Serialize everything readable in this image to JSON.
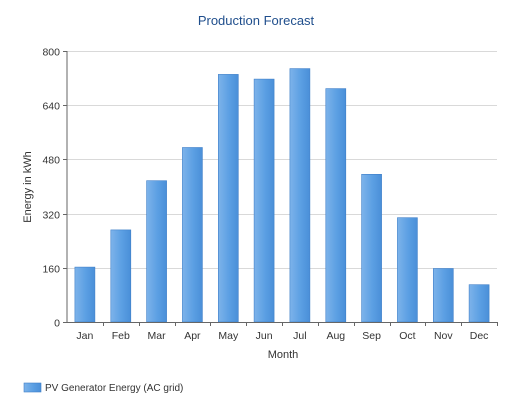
{
  "chart_data": {
    "type": "bar",
    "title": "Production Forecast",
    "xlabel": "Month",
    "ylabel": "Energy in kWh",
    "categories": [
      "Jan",
      "Feb",
      "Mar",
      "Apr",
      "May",
      "Jun",
      "Jul",
      "Aug",
      "Sep",
      "Oct",
      "Nov",
      "Dec"
    ],
    "series": [
      {
        "name": "PV Generator Energy (AC grid)",
        "values": [
          162,
          272,
          417,
          515,
          731,
          717,
          748,
          689,
          436,
          308,
          158,
          110
        ],
        "color": "#5b9fe3"
      }
    ],
    "ylim": [
      0,
      800
    ],
    "yticks": [
      0,
      160,
      320,
      480,
      640,
      800
    ],
    "grid": true,
    "legend": "bottom-left"
  },
  "colors": {
    "title": "#1f4e8c",
    "axis_text": "#333333",
    "grid": "#d9d9d9",
    "axis_line": "#666666",
    "bar_fill": "#5b9fe3",
    "bar_edge": "#3f7fc8"
  }
}
